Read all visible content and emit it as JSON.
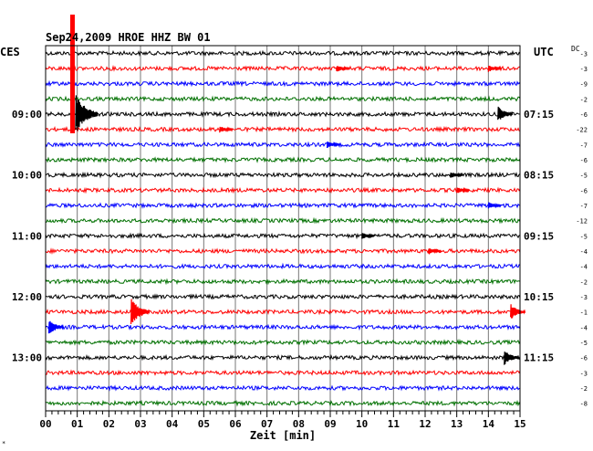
{
  "chart_data": {
    "type": "line",
    "title": "Sep24,2009  HROE HHZ BW 01",
    "tz_left": "CES",
    "tz_right": "UTC",
    "dc_label": "DC",
    "xlabel": "Zeit [min]",
    "x_ticks": [
      "00",
      "01",
      "02",
      "03",
      "04",
      "05",
      "06",
      "07",
      "08",
      "09",
      "10",
      "11",
      "12",
      "13",
      "14",
      "15"
    ],
    "xlim": [
      0,
      15
    ],
    "trace_count": 24,
    "trace_colors": [
      "#000000",
      "#ff0000",
      "#0000ff",
      "#007000"
    ],
    "left_time_labels": [
      {
        "trace": 4,
        "label": "09:00"
      },
      {
        "trace": 8,
        "label": "10:00"
      },
      {
        "trace": 12,
        "label": "11:00"
      },
      {
        "trace": 16,
        "label": "12:00"
      },
      {
        "trace": 20,
        "label": "13:00"
      }
    ],
    "right_time_labels": [
      {
        "trace": 4,
        "label": "07:15"
      },
      {
        "trace": 8,
        "label": "08:15"
      },
      {
        "trace": 12,
        "label": "09:15"
      },
      {
        "trace": 16,
        "label": "10:15"
      },
      {
        "trace": 20,
        "label": "11:15"
      }
    ],
    "dc_offsets": [
      "-3",
      "-3",
      "-9",
      "-2",
      "-6",
      "-22",
      "-7",
      "-6",
      "-5",
      "-6",
      "-7",
      "-12",
      "-5",
      "-4",
      "-4",
      "-2",
      "-3",
      "-1",
      "-4",
      "-5",
      "-6",
      "-3",
      "-2",
      "-8"
    ],
    "events": [
      {
        "trace": 0,
        "minute": 0.85,
        "amplitude": "clip",
        "type": "spike"
      },
      {
        "trace": 4,
        "minute": 0.95,
        "amplitude": "large",
        "type": "quake"
      },
      {
        "trace": 1,
        "minute": 9.2,
        "amplitude": "small"
      },
      {
        "trace": 1,
        "minute": 14.0,
        "amplitude": "small"
      },
      {
        "trace": 4,
        "minute": 14.3,
        "amplitude": "medium"
      },
      {
        "trace": 5,
        "minute": 5.5,
        "amplitude": "small"
      },
      {
        "trace": 6,
        "minute": 8.9,
        "amplitude": "small"
      },
      {
        "trace": 8,
        "minute": 12.8,
        "amplitude": "small"
      },
      {
        "trace": 9,
        "minute": 13.0,
        "amplitude": "small"
      },
      {
        "trace": 10,
        "minute": 14.0,
        "amplitude": "small"
      },
      {
        "trace": 12,
        "minute": 10.0,
        "amplitude": "small"
      },
      {
        "trace": 13,
        "minute": 12.1,
        "amplitude": "small"
      },
      {
        "trace": 17,
        "minute": 2.7,
        "amplitude": "large"
      },
      {
        "trace": 17,
        "minute": 14.7,
        "amplitude": "medium"
      },
      {
        "trace": 18,
        "minute": 0.1,
        "amplitude": "medium"
      },
      {
        "trace": 20,
        "minute": 14.5,
        "amplitude": "medium"
      }
    ],
    "grid": true
  },
  "footnote": "*"
}
